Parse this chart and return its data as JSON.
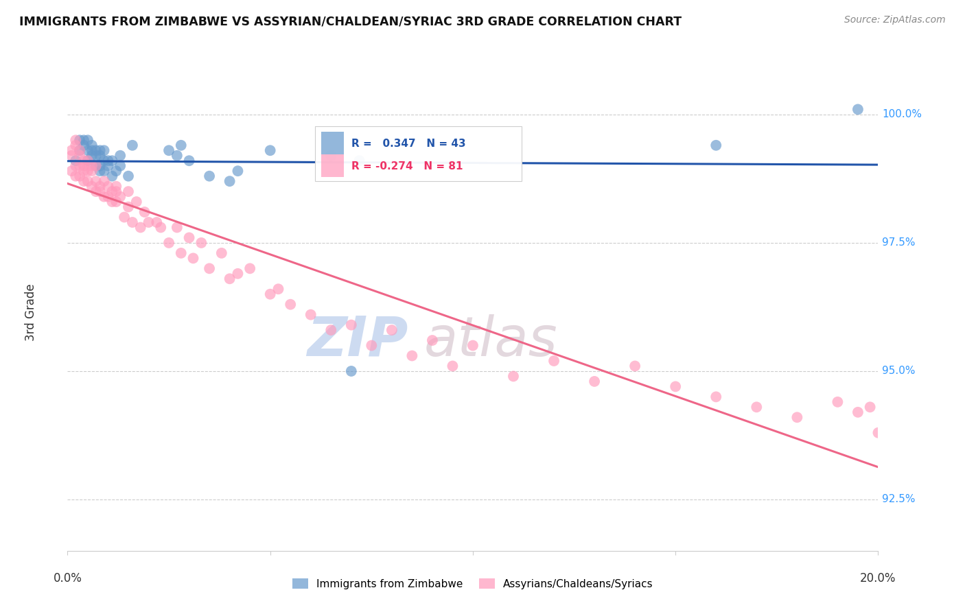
{
  "title": "IMMIGRANTS FROM ZIMBABWE VS ASSYRIAN/CHALDEAN/SYRIAC 3RD GRADE CORRELATION CHART",
  "source": "Source: ZipAtlas.com",
  "ylabel": "3rd Grade",
  "y_ticks": [
    92.5,
    95.0,
    97.5,
    100.0
  ],
  "y_tick_labels": [
    "92.5%",
    "95.0%",
    "97.5%",
    "100.0%"
  ],
  "x_range": [
    0.0,
    0.2
  ],
  "y_range": [
    91.5,
    100.8
  ],
  "legend_blue_r": "0.347",
  "legend_blue_n": "43",
  "legend_pink_r": "-0.274",
  "legend_pink_n": "81",
  "legend_label_blue": "Immigrants from Zimbabwe",
  "legend_label_pink": "Assyrians/Chaldeans/Syriacs",
  "blue_color": "#6699CC",
  "pink_color": "#FF99BB",
  "blue_line_color": "#2255AA",
  "pink_line_color": "#EE6688",
  "watermark_zip": "ZIP",
  "watermark_atlas": "atlas",
  "blue_scatter_x": [
    0.002,
    0.003,
    0.003,
    0.004,
    0.004,
    0.005,
    0.005,
    0.005,
    0.006,
    0.006,
    0.006,
    0.007,
    0.007,
    0.007,
    0.008,
    0.008,
    0.008,
    0.008,
    0.009,
    0.009,
    0.009,
    0.01,
    0.01,
    0.011,
    0.011,
    0.012,
    0.013,
    0.013,
    0.015,
    0.016,
    0.025,
    0.027,
    0.028,
    0.03,
    0.035,
    0.04,
    0.042,
    0.05,
    0.065,
    0.07,
    0.072,
    0.16,
    0.195
  ],
  "blue_scatter_y": [
    99.1,
    99.5,
    99.3,
    99.4,
    99.5,
    99.5,
    99.1,
    99.3,
    99.4,
    99.3,
    99.2,
    99.3,
    99.2,
    99.0,
    99.3,
    99.2,
    99.0,
    98.9,
    99.3,
    99.1,
    98.9,
    99.1,
    99.0,
    99.1,
    98.8,
    98.9,
    99.0,
    99.2,
    98.8,
    99.4,
    99.3,
    99.2,
    99.4,
    99.1,
    98.8,
    98.7,
    98.9,
    99.3,
    99.2,
    95.0,
    99.1,
    99.4,
    100.1
  ],
  "pink_scatter_x": [
    0.001,
    0.001,
    0.001,
    0.002,
    0.002,
    0.002,
    0.002,
    0.003,
    0.003,
    0.003,
    0.003,
    0.004,
    0.004,
    0.004,
    0.004,
    0.005,
    0.005,
    0.005,
    0.006,
    0.006,
    0.006,
    0.007,
    0.007,
    0.007,
    0.008,
    0.008,
    0.009,
    0.009,
    0.01,
    0.01,
    0.011,
    0.011,
    0.012,
    0.012,
    0.012,
    0.013,
    0.014,
    0.015,
    0.015,
    0.016,
    0.017,
    0.018,
    0.019,
    0.02,
    0.022,
    0.023,
    0.025,
    0.027,
    0.028,
    0.03,
    0.031,
    0.033,
    0.035,
    0.038,
    0.04,
    0.042,
    0.045,
    0.05,
    0.052,
    0.055,
    0.06,
    0.065,
    0.07,
    0.075,
    0.08,
    0.085,
    0.09,
    0.095,
    0.1,
    0.11,
    0.12,
    0.13,
    0.14,
    0.15,
    0.16,
    0.17,
    0.18,
    0.19,
    0.195,
    0.198,
    0.2
  ],
  "pink_scatter_y": [
    99.2,
    98.9,
    99.3,
    99.4,
    99.0,
    98.8,
    99.5,
    99.2,
    99.0,
    98.8,
    99.3,
    98.9,
    99.1,
    99.0,
    98.7,
    98.9,
    98.7,
    99.1,
    98.9,
    98.6,
    99.0,
    98.7,
    98.5,
    99.0,
    98.6,
    98.5,
    98.4,
    98.7,
    98.6,
    98.4,
    98.5,
    98.3,
    98.5,
    98.3,
    98.6,
    98.4,
    98.0,
    98.5,
    98.2,
    97.9,
    98.3,
    97.8,
    98.1,
    97.9,
    97.9,
    97.8,
    97.5,
    97.8,
    97.3,
    97.6,
    97.2,
    97.5,
    97.0,
    97.3,
    96.8,
    96.9,
    97.0,
    96.5,
    96.6,
    96.3,
    96.1,
    95.8,
    95.9,
    95.5,
    95.8,
    95.3,
    95.6,
    95.1,
    95.5,
    94.9,
    95.2,
    94.8,
    95.1,
    94.7,
    94.5,
    94.3,
    94.1,
    94.4,
    94.2,
    94.3,
    93.8
  ]
}
